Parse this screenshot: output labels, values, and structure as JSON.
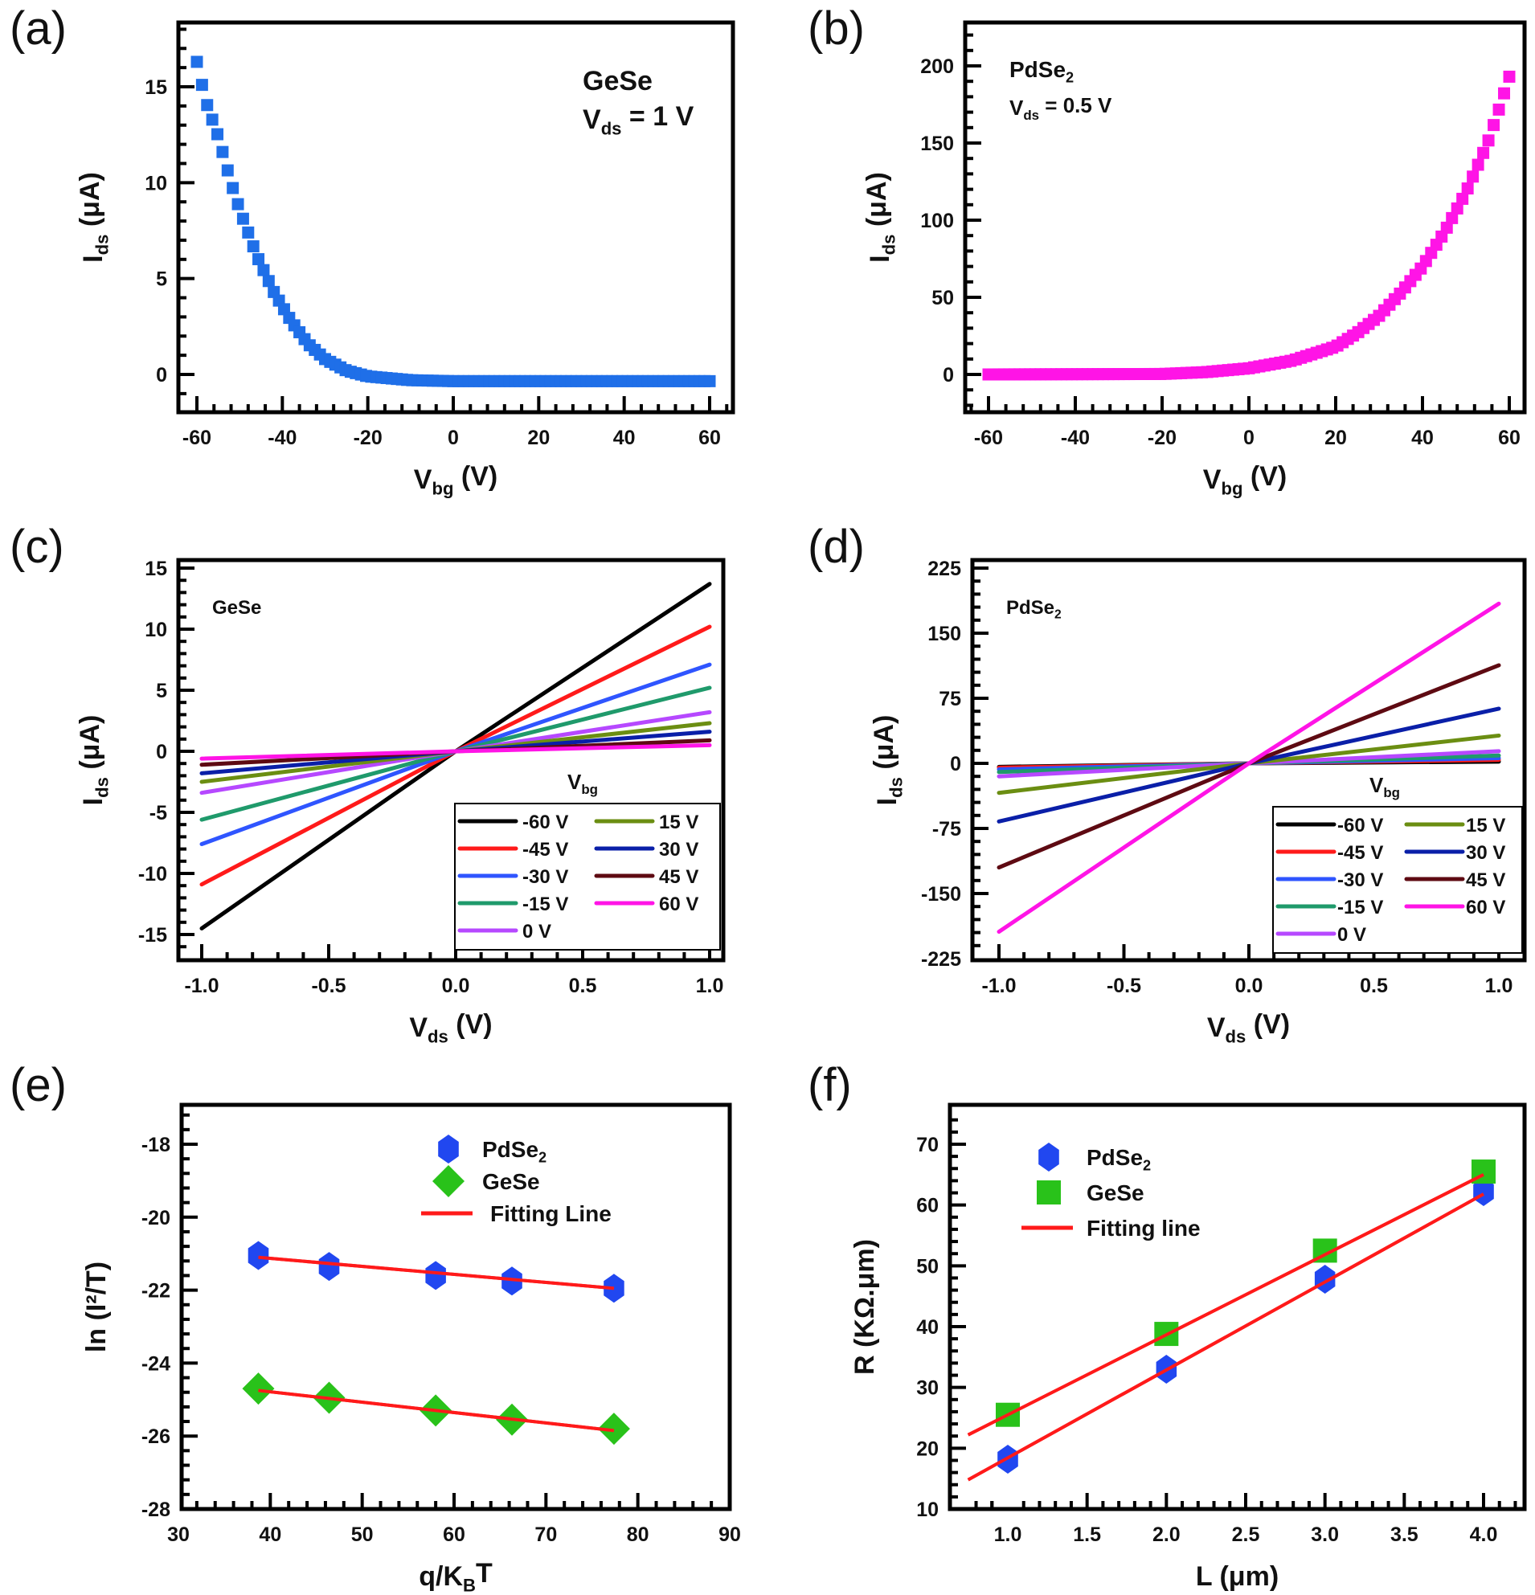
{
  "chart_data": [
    {
      "id": "a",
      "panel_label": "(a)",
      "type": "scatter",
      "marker": "square",
      "color": "#1f6fe8",
      "xlabel_main": "V",
      "xlabel_sub": "bg",
      "xlabel_tail": " (V)",
      "ylabel_main": "I",
      "ylabel_sub": "ds",
      "ylabel_tail": " (μA)",
      "xlim": [
        -65,
        65
      ],
      "ylim": [
        -2,
        18
      ],
      "xticks": [
        -60,
        -40,
        -20,
        0,
        20,
        40,
        60
      ],
      "yticks": [
        0,
        5,
        10,
        15
      ],
      "annotations": [
        {
          "text": "GeSe",
          "color": "#1f6fe8"
        },
        {
          "main": "V",
          "sub": "ds",
          "tail": " = 1 V",
          "color": "#111111"
        }
      ],
      "series": [
        {
          "name": "GeSe",
          "x_range": [
            -60,
            60
          ],
          "step": 1.2,
          "anchors": [
            [
              -60,
              16.3
            ],
            [
              -58,
              14.3
            ],
            [
              -55,
              12.4
            ],
            [
              -52,
              10.0
            ],
            [
              -50,
              8.6
            ],
            [
              -46,
              6.2
            ],
            [
              -42,
              4.3
            ],
            [
              -38,
              2.8
            ],
            [
              -34,
              1.6
            ],
            [
              -30,
              0.8
            ],
            [
              -25,
              0.2
            ],
            [
              -20,
              -0.1
            ],
            [
              -10,
              -0.3
            ],
            [
              0,
              -0.35
            ],
            [
              30,
              -0.35
            ],
            [
              60,
              -0.35
            ]
          ]
        }
      ]
    },
    {
      "id": "b",
      "panel_label": "(b)",
      "type": "scatter",
      "marker": "square",
      "color": "#ff14e6",
      "xlabel_main": "V",
      "xlabel_sub": "bg",
      "xlabel_tail": " (V)",
      "ylabel_main": "I",
      "ylabel_sub": "ds",
      "ylabel_tail": " (μA)",
      "xlim": [
        -65,
        65
      ],
      "ylim": [
        -25,
        225
      ],
      "xticks": [
        -60,
        -40,
        -20,
        0,
        20,
        40,
        60
      ],
      "yticks": [
        0,
        50,
        100,
        150,
        200
      ],
      "annotations": [
        {
          "main": "PdSe",
          "sub": "2",
          "tail": "",
          "color": "#ff14e6"
        },
        {
          "main": "V",
          "sub": "ds",
          "tail": " = 0.5 V",
          "color": "#111111"
        }
      ],
      "series": [
        {
          "name": "PdSe2",
          "x_range": [
            -60,
            60
          ],
          "step": 1.2,
          "anchors": [
            [
              -60,
              0
            ],
            [
              -20,
              0.3
            ],
            [
              -10,
              1.5
            ],
            [
              0,
              4
            ],
            [
              10,
              9
            ],
            [
              20,
              18
            ],
            [
              25,
              27
            ],
            [
              30,
              38
            ],
            [
              35,
              53
            ],
            [
              40,
              70
            ],
            [
              45,
              92
            ],
            [
              50,
              118
            ],
            [
              55,
              150
            ],
            [
              58,
              175
            ],
            [
              60,
              193
            ]
          ]
        }
      ]
    },
    {
      "id": "c",
      "panel_label": "(c)",
      "type": "line",
      "xlabel_main": "V",
      "xlabel_sub": "ds",
      "xlabel_tail": " (V)",
      "ylabel_main": "I",
      "ylabel_sub": "ds",
      "ylabel_tail": " (μA)",
      "xlim": [
        -1.1,
        1.1
      ],
      "ylim": [
        -17,
        15
      ],
      "xticks": [
        -1.0,
        -0.5,
        0.0,
        0.5,
        1.0
      ],
      "xtick_labels": [
        "-1.0",
        "-0.5",
        "0.0",
        "0.5",
        "1.0"
      ],
      "yticks": [
        -15,
        -10,
        -5,
        0,
        5,
        10,
        15
      ],
      "annotations": [
        {
          "text": "GeSe",
          "color": "#111111"
        }
      ],
      "legend_title_main": "V",
      "legend_title_sub": "bg",
      "legend_position": "bottom-right",
      "series": [
        {
          "name": "-60 V",
          "color": "#000000",
          "y_at_minus1": -14.5,
          "y_at_plus1": 13.7
        },
        {
          "name": "-45 V",
          "color": "#ff1a1a",
          "y_at_minus1": -10.9,
          "y_at_plus1": 10.2
        },
        {
          "name": "-30 V",
          "color": "#2f55ff",
          "y_at_minus1": -7.6,
          "y_at_plus1": 7.1
        },
        {
          "name": "-15 V",
          "color": "#1f9a6b",
          "y_at_minus1": -5.6,
          "y_at_plus1": 5.2
        },
        {
          "name": "0 V",
          "color": "#b648ff",
          "y_at_minus1": -3.4,
          "y_at_plus1": 3.2
        },
        {
          "name": "15 V",
          "color": "#6b8e12",
          "y_at_minus1": -2.5,
          "y_at_plus1": 2.3
        },
        {
          "name": "30 V",
          "color": "#0a1fa8",
          "y_at_minus1": -1.8,
          "y_at_plus1": 1.6
        },
        {
          "name": "45 V",
          "color": "#5e0a12",
          "y_at_minus1": -1.1,
          "y_at_plus1": 0.9
        },
        {
          "name": "60 V",
          "color": "#ff14e6",
          "y_at_minus1": -0.6,
          "y_at_plus1": 0.5
        }
      ],
      "legend_order": [
        [
          "-60 V",
          "15 V"
        ],
        [
          "-45 V",
          "30 V"
        ],
        [
          "-30 V",
          "45 V"
        ],
        [
          "-15 V",
          "60 V"
        ],
        [
          "0 V",
          null
        ]
      ]
    },
    {
      "id": "d",
      "panel_label": "(d)",
      "type": "line",
      "xlabel_main": "V",
      "xlabel_sub": "ds",
      "xlabel_tail": " (V)",
      "ylabel_main": "I",
      "ylabel_sub": "ds",
      "ylabel_tail": " (μA)",
      "xlim": [
        -1.1,
        1.1
      ],
      "ylim": [
        -225,
        225
      ],
      "xticks": [
        -1.0,
        -0.5,
        0.0,
        0.5,
        1.0
      ],
      "xtick_labels": [
        "-1.0",
        "-0.5",
        "0.0",
        "0.5",
        "1.0"
      ],
      "yticks": [
        -225,
        -150,
        -75,
        0,
        75,
        150,
        225
      ],
      "annotations": [
        {
          "main": "PdSe",
          "sub": "2",
          "tail": "",
          "color": "#111111"
        }
      ],
      "legend_title_main": "V",
      "legend_title_sub": "bg",
      "legend_position": "bottom-right",
      "series": [
        {
          "name": "-60 V",
          "color": "#000000",
          "y_at_minus1": -4,
          "y_at_plus1": 2
        },
        {
          "name": "-45 V",
          "color": "#ff1a1a",
          "y_at_minus1": -5,
          "y_at_plus1": 4
        },
        {
          "name": "-30 V",
          "color": "#2f55ff",
          "y_at_minus1": -7,
          "y_at_plus1": 6
        },
        {
          "name": "-15 V",
          "color": "#1f9a6b",
          "y_at_minus1": -10,
          "y_at_plus1": 9
        },
        {
          "name": "0 V",
          "color": "#b648ff",
          "y_at_minus1": -15,
          "y_at_plus1": 14
        },
        {
          "name": "15 V",
          "color": "#6b8e12",
          "y_at_minus1": -34,
          "y_at_plus1": 32
        },
        {
          "name": "30 V",
          "color": "#0a1fa8",
          "y_at_minus1": -67,
          "y_at_plus1": 63
        },
        {
          "name": "45 V",
          "color": "#5e0a12",
          "y_at_minus1": -120,
          "y_at_plus1": 113
        },
        {
          "name": "60 V",
          "color": "#ff14e6",
          "y_at_minus1": -194,
          "y_at_plus1": 184
        }
      ],
      "legend_order": [
        [
          "-60 V",
          "15 V"
        ],
        [
          "-45 V",
          "30 V"
        ],
        [
          "-30 V",
          "45 V"
        ],
        [
          "-15 V",
          "60 V"
        ],
        [
          "0 V",
          null
        ]
      ]
    },
    {
      "id": "e",
      "panel_label": "(e)",
      "type": "scatter",
      "xlabel_main": "q/K",
      "xlabel_sub": "B",
      "xlabel_tail": "T",
      "ylabel_text": "ln (I²/T)",
      "xlim": [
        30,
        90
      ],
      "ylim": [
        -28,
        -17
      ],
      "xticks": [
        30,
        40,
        50,
        60,
        70,
        80,
        90
      ],
      "yticks": [
        -28,
        -26,
        -24,
        -22,
        -20,
        -18
      ],
      "legend_position": "top-center",
      "series": [
        {
          "name": "PdSe2",
          "legend_main": "PdSe",
          "legend_sub": "2",
          "marker": "hexagon",
          "color": "#2147f0",
          "x": [
            38.7,
            46.4,
            58.0,
            66.3,
            77.4
          ],
          "y": [
            -21.05,
            -21.35,
            -21.6,
            -21.75,
            -21.95
          ]
        },
        {
          "name": "GeSe",
          "legend_main": "GeSe",
          "legend_sub": "",
          "marker": "diamond",
          "color": "#29c21a",
          "x": [
            38.7,
            46.4,
            58.0,
            66.3,
            77.4
          ],
          "y": [
            -24.7,
            -24.95,
            -25.3,
            -25.55,
            -25.8
          ]
        }
      ],
      "fits": [
        {
          "name": "PdSe2 fit",
          "color": "#ff1a1a",
          "x": [
            38.7,
            77.4
          ],
          "y": [
            -21.1,
            -21.95
          ]
        },
        {
          "name": "GeSe fit",
          "color": "#ff1a1a",
          "x": [
            38.7,
            77.4
          ],
          "y": [
            -24.75,
            -25.85
          ]
        }
      ],
      "fit_legend_label": "Fitting Line"
    },
    {
      "id": "f",
      "panel_label": "(f)",
      "type": "scatter",
      "xlabel_text": "L (μm)",
      "ylabel_text": "R (KΩ.μm)",
      "xlim": [
        0.75,
        4.2
      ],
      "ylim": [
        10,
        75
      ],
      "xticks": [
        1.0,
        1.5,
        2.0,
        2.5,
        3.0,
        3.5,
        4.0
      ],
      "xtick_labels": [
        "1.0",
        "1.5",
        "2.0",
        "2.5",
        "3.0",
        "3.5",
        "4.0"
      ],
      "yticks": [
        10,
        20,
        30,
        40,
        50,
        60,
        70
      ],
      "legend_position": "top-left",
      "series": [
        {
          "name": "PdSe2",
          "legend_main": "PdSe",
          "legend_sub": "2",
          "marker": "hexagon",
          "color": "#2147f0",
          "x": [
            1.0,
            2.0,
            3.0,
            4.0
          ],
          "y": [
            18.2,
            33.0,
            47.8,
            62.2
          ]
        },
        {
          "name": "GeSe",
          "legend_main": "GeSe",
          "legend_sub": "",
          "marker": "square",
          "color": "#29c21a",
          "x": [
            1.0,
            2.0,
            3.0,
            4.0
          ],
          "y": [
            25.5,
            38.8,
            52.5,
            65.5
          ]
        }
      ],
      "fits": [
        {
          "name": "GeSe fit",
          "color": "#ff1a1a",
          "x": [
            0.75,
            4.0
          ],
          "y": [
            22.2,
            65.0
          ]
        },
        {
          "name": "PdSe2 fit",
          "color": "#ff1a1a",
          "x": [
            0.75,
            4.0
          ],
          "y": [
            14.8,
            61.8
          ]
        }
      ],
      "fit_legend_label": "Fitting line"
    }
  ]
}
